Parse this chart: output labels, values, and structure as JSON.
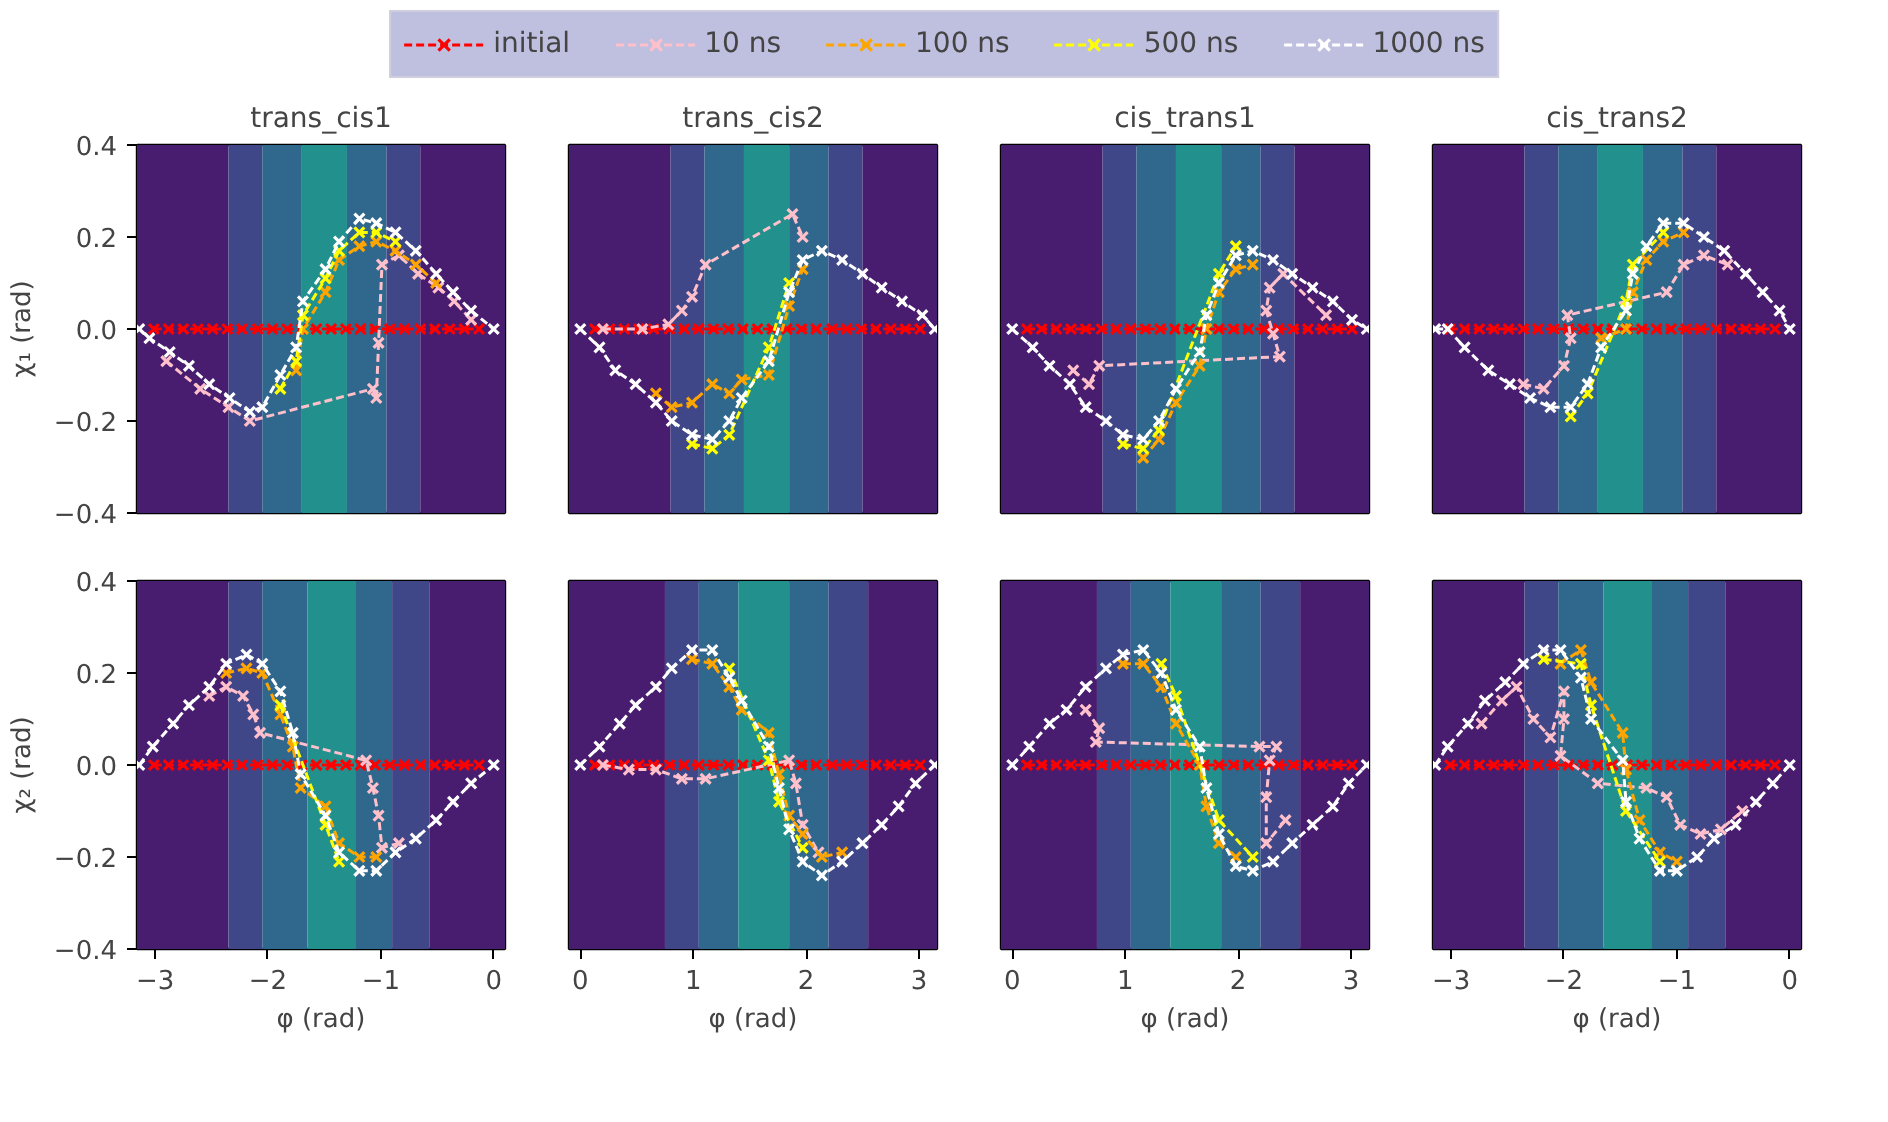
{
  "chart_data": [
    {
      "type": "line",
      "title": "trans_cis1",
      "ylabel": "χ₁ (rad)",
      "legend": "top",
      "line_style": "dashed",
      "marker": "cross",
      "grid": false,
      "tick_labels": "y",
      "xlim": [
        -3.16,
        0.1
      ],
      "ylim": [
        -0.4,
        0.4
      ],
      "yticks": [
        {
          "value": -0.4,
          "label": "−0.4"
        },
        {
          "value": -0.2,
          "label": "−0.2"
        },
        {
          "value": 0,
          "label": "0.0"
        },
        {
          "value": 0.2,
          "label": "0.2"
        },
        {
          "value": 0.4,
          "label": "0.4"
        }
      ],
      "bands": [
        {
          "axis": "x",
          "from": -3.16,
          "to": -2.35,
          "color": "#481c6e"
        },
        {
          "axis": "x",
          "from": -2.35,
          "to": -2.05,
          "color": "#3f4788"
        },
        {
          "axis": "x",
          "from": -2.05,
          "to": -1.7,
          "color": "#30678d"
        },
        {
          "axis": "x",
          "from": -1.7,
          "to": -1.3,
          "color": "#22908c"
        },
        {
          "axis": "x",
          "from": -1.3,
          "to": -0.95,
          "color": "#30678d"
        },
        {
          "axis": "x",
          "from": -0.95,
          "to": -0.65,
          "color": "#3f4788"
        },
        {
          "axis": "x",
          "from": -0.65,
          "to": 0.1,
          "color": "#481c6e"
        }
      ],
      "series": [
        {
          "name": "initial",
          "color": "#ff0000",
          "x": [
            -3.01,
            -2.88,
            -2.75,
            -2.62,
            -2.49,
            -2.36,
            -2.23,
            -2.09,
            -1.96,
            -1.83,
            -1.7,
            -1.57,
            -1.44,
            -1.31,
            -1.18,
            -1.05,
            -0.92,
            -0.79,
            -0.65,
            -0.52,
            -0.39,
            -0.26,
            -0.13
          ],
          "values": [
            0,
            0,
            0,
            0,
            0,
            0,
            0,
            0,
            0,
            0,
            0,
            0,
            0,
            0,
            0,
            0,
            0,
            0,
            0,
            0,
            0,
            0,
            0
          ]
        },
        {
          "name": "10 ns",
          "color": "#ffc0cb",
          "x": [
            -2.9,
            -2.6,
            -2.35,
            -2.16,
            -1.07,
            -1.04,
            -1.02,
            -0.99,
            -0.84,
            -0.67,
            -0.49,
            -0.35,
            -0.2
          ],
          "values": [
            -0.07,
            -0.13,
            -0.17,
            -0.2,
            -0.13,
            -0.15,
            -0.03,
            0.14,
            0.16,
            0.12,
            0.09,
            0.06,
            0.02
          ]
        },
        {
          "name": "100 ns",
          "color": "#ffa500",
          "x": [
            -1.75,
            -1.69,
            -1.49,
            -1.37,
            -1.19,
            -1.04,
            -0.87,
            -0.69,
            -0.51
          ],
          "values": [
            -0.09,
            0.0,
            0.08,
            0.15,
            0.18,
            0.19,
            0.17,
            0.14,
            0.1
          ]
        },
        {
          "name": "500 ns",
          "color": "#ffff00",
          "x": [
            -1.89,
            -1.75,
            -1.69,
            -1.49,
            -1.37,
            -1.19,
            -1.04,
            -0.87
          ],
          "values": [
            -0.13,
            -0.07,
            0.03,
            0.11,
            0.17,
            0.21,
            0.21,
            0.19
          ]
        },
        {
          "name": "1000 ns",
          "color": "#ffffff",
          "x": [
            -3.14,
            -3.05,
            -2.87,
            -2.7,
            -2.52,
            -2.34,
            -2.16,
            -2.05,
            -1.89,
            -1.75,
            -1.69,
            -1.49,
            -1.37,
            -1.19,
            -1.04,
            -0.87,
            -0.69,
            -0.51,
            -0.36,
            -0.2,
            0
          ],
          "values": [
            0,
            -0.02,
            -0.05,
            -0.08,
            -0.12,
            -0.15,
            -0.18,
            -0.17,
            -0.1,
            -0.04,
            0.06,
            0.13,
            0.19,
            0.24,
            0.23,
            0.21,
            0.17,
            0.12,
            0.08,
            0.04,
            0
          ]
        }
      ]
    },
    {
      "type": "line",
      "title": "trans_cis2",
      "line_style": "dashed",
      "marker": "cross",
      "grid": false,
      "tick_labels": false,
      "xlim": [
        -0.1,
        3.16
      ],
      "ylim": [
        -0.4,
        0.4
      ],
      "bands": [
        {
          "axis": "x",
          "from": -0.1,
          "to": 0.8,
          "color": "#481c6e"
        },
        {
          "axis": "x",
          "from": 0.8,
          "to": 1.1,
          "color": "#3f4788"
        },
        {
          "axis": "x",
          "from": 1.1,
          "to": 1.45,
          "color": "#30678d"
        },
        {
          "axis": "x",
          "from": 1.45,
          "to": 1.85,
          "color": "#22908c"
        },
        {
          "axis": "x",
          "from": 1.85,
          "to": 2.2,
          "color": "#30678d"
        },
        {
          "axis": "x",
          "from": 2.2,
          "to": 2.5,
          "color": "#3f4788"
        },
        {
          "axis": "x",
          "from": 2.5,
          "to": 3.16,
          "color": "#481c6e"
        }
      ],
      "series": [
        {
          "color": "#ff0000",
          "x": [
            0.13,
            0.26,
            0.39,
            0.52,
            0.65,
            0.79,
            0.92,
            1.05,
            1.18,
            1.31,
            1.44,
            1.57,
            1.7,
            1.83,
            1.96,
            2.09,
            2.23,
            2.36,
            2.49,
            2.62,
            2.75,
            2.88,
            3.01
          ],
          "values": [
            0,
            0,
            0,
            0,
            0,
            0,
            0,
            0,
            0,
            0,
            0,
            0,
            0,
            0,
            0,
            0,
            0,
            0,
            0,
            0,
            0,
            0,
            0
          ]
        },
        {
          "color": "#ffc0cb",
          "x": [
            0.2,
            0.55,
            0.78,
            0.9,
            0.99,
            1.11,
            1.88,
            1.97
          ],
          "values": [
            0,
            0,
            0.01,
            0.04,
            0.07,
            0.14,
            0.25,
            0.2
          ]
        },
        {
          "color": "#ffa500",
          "x": [
            0.67,
            0.81,
            0.99,
            1.17,
            1.32,
            1.43,
            1.67,
            1.85,
            1.97
          ],
          "values": [
            -0.14,
            -0.17,
            -0.16,
            -0.12,
            -0.14,
            -0.11,
            -0.1,
            0.05,
            0.13
          ]
        },
        {
          "color": "#ffff00",
          "x": [
            0.99,
            1.17,
            1.32,
            1.67,
            1.85
          ],
          "values": [
            -0.25,
            -0.26,
            -0.23,
            -0.04,
            0.1
          ]
        },
        {
          "color": "#ffffff",
          "x": [
            0,
            0.17,
            0.31,
            0.49,
            0.67,
            0.81,
            0.99,
            1.17,
            1.32,
            1.43,
            1.67,
            1.85,
            1.97,
            2.14,
            2.32,
            2.5,
            2.67,
            2.85,
            3.03,
            3.14
          ],
          "values": [
            0,
            -0.04,
            -0.09,
            -0.12,
            -0.16,
            -0.2,
            -0.23,
            -0.24,
            -0.2,
            -0.15,
            -0.07,
            0.08,
            0.15,
            0.17,
            0.15,
            0.12,
            0.09,
            0.06,
            0.03,
            0
          ]
        }
      ]
    },
    {
      "type": "line",
      "title": "cis_trans1",
      "line_style": "dashed",
      "marker": "cross",
      "grid": false,
      "tick_labels": false,
      "xlim": [
        -0.1,
        3.16
      ],
      "ylim": [
        -0.4,
        0.4
      ],
      "bands": [
        {
          "axis": "x",
          "from": -0.1,
          "to": 0.8,
          "color": "#481c6e"
        },
        {
          "axis": "x",
          "from": 0.8,
          "to": 1.1,
          "color": "#3f4788"
        },
        {
          "axis": "x",
          "from": 1.1,
          "to": 1.45,
          "color": "#30678d"
        },
        {
          "axis": "x",
          "from": 1.45,
          "to": 1.85,
          "color": "#22908c"
        },
        {
          "axis": "x",
          "from": 1.85,
          "to": 2.2,
          "color": "#30678d"
        },
        {
          "axis": "x",
          "from": 2.2,
          "to": 2.5,
          "color": "#3f4788"
        },
        {
          "axis": "x",
          "from": 2.5,
          "to": 3.16,
          "color": "#481c6e"
        }
      ],
      "series": [
        {
          "color": "#ff0000",
          "x": [
            0.13,
            0.26,
            0.39,
            0.52,
            0.65,
            0.79,
            0.92,
            1.05,
            1.18,
            1.31,
            1.44,
            1.57,
            1.7,
            1.83,
            1.96,
            2.09,
            2.23,
            2.36,
            2.49,
            2.62,
            2.75,
            2.88,
            3.01
          ],
          "values": [
            0,
            0,
            0,
            0,
            0,
            0,
            0,
            0,
            0,
            0,
            0,
            0,
            0,
            0,
            0,
            0,
            0,
            0,
            0,
            0,
            0,
            0,
            0
          ]
        },
        {
          "color": "#ffc0cb",
          "x": [
            0.54,
            0.68,
            0.77,
            2.37,
            2.31,
            2.25,
            2.28,
            2.4,
            2.78
          ],
          "values": [
            -0.09,
            -0.12,
            -0.08,
            -0.06,
            -0.01,
            0.04,
            0.09,
            0.12,
            0.03
          ]
        },
        {
          "color": "#ffa500",
          "x": [
            1.16,
            1.3,
            1.45,
            1.66,
            1.72,
            1.83,
            1.98,
            2.13
          ],
          "values": [
            -0.28,
            -0.24,
            -0.16,
            -0.08,
            0.0,
            0.08,
            0.13,
            0.14
          ]
        },
        {
          "color": "#ffff00",
          "x": [
            0.98,
            1.16,
            1.3,
            1.83,
            1.98
          ],
          "values": [
            -0.25,
            -0.26,
            -0.22,
            0.12,
            0.18
          ]
        },
        {
          "color": "#ffffff",
          "x": [
            0,
            0.18,
            0.33,
            0.51,
            0.65,
            0.83,
            0.98,
            1.16,
            1.3,
            1.45,
            1.66,
            1.72,
            1.83,
            1.98,
            2.13,
            2.31,
            2.48,
            2.66,
            2.84,
            3.01,
            3.14
          ],
          "values": [
            0,
            -0.04,
            -0.08,
            -0.12,
            -0.17,
            -0.2,
            -0.23,
            -0.24,
            -0.2,
            -0.13,
            -0.05,
            0.03,
            0.1,
            0.16,
            0.17,
            0.15,
            0.12,
            0.09,
            0.06,
            0.02,
            0
          ]
        }
      ]
    },
    {
      "type": "line",
      "title": "cis_trans2",
      "line_style": "dashed",
      "marker": "cross",
      "grid": false,
      "tick_labels": false,
      "xlim": [
        -3.16,
        0.1
      ],
      "ylim": [
        -0.4,
        0.4
      ],
      "bands": [
        {
          "axis": "x",
          "from": -3.16,
          "to": -2.35,
          "color": "#481c6e"
        },
        {
          "axis": "x",
          "from": -2.35,
          "to": -2.05,
          "color": "#3f4788"
        },
        {
          "axis": "x",
          "from": -2.05,
          "to": -1.7,
          "color": "#30678d"
        },
        {
          "axis": "x",
          "from": -1.7,
          "to": -1.3,
          "color": "#22908c"
        },
        {
          "axis": "x",
          "from": -1.3,
          "to": -0.95,
          "color": "#30678d"
        },
        {
          "axis": "x",
          "from": -0.95,
          "to": -0.65,
          "color": "#3f4788"
        },
        {
          "axis": "x",
          "from": -0.65,
          "to": 0.1,
          "color": "#481c6e"
        }
      ],
      "series": [
        {
          "color": "#ff0000",
          "x": [
            -3.01,
            -2.88,
            -2.75,
            -2.62,
            -2.49,
            -2.36,
            -2.23,
            -2.09,
            -1.96,
            -1.83,
            -1.7,
            -1.57,
            -1.44,
            -1.31,
            -1.18,
            -1.05,
            -0.92,
            -0.79,
            -0.65,
            -0.52,
            -0.39,
            -0.26,
            -0.13
          ],
          "values": [
            0,
            0,
            0,
            0,
            0,
            0,
            0,
            0,
            0,
            0,
            0,
            0,
            0,
            0,
            0,
            0,
            0,
            0,
            0,
            0,
            0,
            0,
            0
          ]
        },
        {
          "color": "#ffc0cb",
          "x": [
            -2.36,
            -2.18,
            -2.0,
            -1.94,
            -1.97,
            -1.09,
            -0.94,
            -0.76,
            -0.55
          ],
          "values": [
            -0.12,
            -0.13,
            -0.08,
            -0.02,
            0.03,
            0.08,
            0.14,
            0.16,
            0.14
          ]
        },
        {
          "color": "#ffa500",
          "x": [
            -1.67,
            -1.45,
            -1.39,
            -1.27,
            -1.12,
            -0.94
          ],
          "values": [
            -0.02,
            0.0,
            0.08,
            0.15,
            0.19,
            0.21
          ]
        },
        {
          "color": "#ffff00",
          "x": [
            -1.94,
            -1.79,
            -1.45,
            -1.39,
            -1.12
          ],
          "values": [
            -0.19,
            -0.14,
            0.06,
            0.14,
            0.21
          ]
        },
        {
          "color": "#ffffff",
          "x": [
            -3.14,
            -3.03,
            -2.88,
            -2.67,
            -2.48,
            -2.3,
            -2.12,
            -1.94,
            -1.79,
            -1.67,
            -1.45,
            -1.39,
            -1.27,
            -1.12,
            -0.94,
            -0.76,
            -0.58,
            -0.39,
            -0.24,
            -0.09,
            0
          ],
          "values": [
            0,
            0,
            -0.04,
            -0.09,
            -0.12,
            -0.15,
            -0.17,
            -0.17,
            -0.12,
            -0.04,
            0.04,
            0.12,
            0.18,
            0.23,
            0.23,
            0.2,
            0.17,
            0.12,
            0.08,
            0.04,
            0
          ]
        }
      ]
    },
    {
      "type": "line",
      "xlabel": "φ (rad)",
      "ylabel": "χ₂ (rad)",
      "line_style": "dashed",
      "marker": "cross",
      "grid": false,
      "xlim": [
        -3.16,
        0.1
      ],
      "ylim": [
        -0.4,
        0.4
      ],
      "xticks": [
        {
          "value": -3,
          "label": "−3"
        },
        {
          "value": -2,
          "label": "−2"
        },
        {
          "value": -1,
          "label": "−1"
        },
        0
      ],
      "yticks": [
        {
          "value": -0.4,
          "label": "−0.4"
        },
        {
          "value": -0.2,
          "label": "−0.2"
        },
        {
          "value": 0,
          "label": "0.0"
        },
        {
          "value": 0.2,
          "label": "0.2"
        },
        {
          "value": 0.4,
          "label": "0.4"
        }
      ],
      "bands": [
        {
          "axis": "x",
          "from": -3.16,
          "to": -2.35,
          "color": "#481c6e"
        },
        {
          "axis": "x",
          "from": -2.35,
          "to": -2.05,
          "color": "#3f4788"
        },
        {
          "axis": "x",
          "from": -2.05,
          "to": -1.65,
          "color": "#30678d"
        },
        {
          "axis": "x",
          "from": -1.65,
          "to": -1.22,
          "color": "#22908c"
        },
        {
          "axis": "x",
          "from": -1.22,
          "to": -0.9,
          "color": "#30678d"
        },
        {
          "axis": "x",
          "from": -0.9,
          "to": -0.57,
          "color": "#3f4788"
        },
        {
          "axis": "x",
          "from": -0.57,
          "to": 0.1,
          "color": "#481c6e"
        }
      ],
      "series": [
        {
          "color": "#ff0000",
          "x": [
            -3.01,
            -2.88,
            -2.75,
            -2.62,
            -2.49,
            -2.36,
            -2.23,
            -2.09,
            -1.96,
            -1.83,
            -1.7,
            -1.57,
            -1.44,
            -1.31,
            -1.18,
            -1.05,
            -0.92,
            -0.79,
            -0.65,
            -0.52,
            -0.39,
            -0.26,
            -0.13
          ],
          "values": [
            0,
            0,
            0,
            0,
            0,
            0,
            0,
            0,
            0,
            0,
            0,
            0,
            0,
            0,
            0,
            0,
            0,
            0,
            0,
            0,
            0,
            0,
            0
          ]
        },
        {
          "color": "#ffc0cb",
          "x": [
            -2.52,
            -2.37,
            -2.22,
            -2.13,
            -2.07,
            -1.13,
            -1.07,
            -1.02,
            -0.99,
            -0.84
          ],
          "values": [
            0.15,
            0.17,
            0.15,
            0.11,
            0.07,
            0.01,
            -0.05,
            -0.11,
            -0.18,
            -0.17
          ]
        },
        {
          "color": "#ffa500",
          "x": [
            -2.37,
            -2.19,
            -2.05,
            -1.89,
            -1.78,
            -1.71,
            -1.49,
            -1.37,
            -1.19,
            -1.04
          ],
          "values": [
            0.2,
            0.21,
            0.2,
            0.11,
            0.04,
            -0.05,
            -0.09,
            -0.17,
            -0.2,
            -0.2
          ]
        },
        {
          "color": "#ffff00",
          "x": [
            -1.89,
            -1.49,
            -1.37
          ],
          "values": [
            0.13,
            -0.13,
            -0.21
          ]
        },
        {
          "color": "#ffffff",
          "x": [
            -3.14,
            -3.02,
            -2.84,
            -2.7,
            -2.52,
            -2.37,
            -2.19,
            -2.05,
            -1.89,
            -1.78,
            -1.71,
            -1.49,
            -1.37,
            -1.19,
            -1.04,
            -0.87,
            -0.69,
            -0.51,
            -0.36,
            -0.2,
            0
          ],
          "values": [
            0,
            0.04,
            0.09,
            0.13,
            0.17,
            0.22,
            0.24,
            0.22,
            0.16,
            0.07,
            -0.02,
            -0.11,
            -0.19,
            -0.23,
            -0.23,
            -0.19,
            -0.16,
            -0.12,
            -0.08,
            -0.04,
            0
          ]
        }
      ]
    },
    {
      "type": "line",
      "xlabel": "φ (rad)",
      "line_style": "dashed",
      "marker": "cross",
      "grid": false,
      "tick_labels": "x",
      "xlim": [
        -0.1,
        3.16
      ],
      "ylim": [
        -0.4,
        0.4
      ],
      "xticks": [
        0,
        1,
        2,
        3
      ],
      "bands": [
        {
          "axis": "x",
          "from": -0.1,
          "to": 0.75,
          "color": "#481c6e"
        },
        {
          "axis": "x",
          "from": 0.75,
          "to": 1.05,
          "color": "#3f4788"
        },
        {
          "axis": "x",
          "from": 1.05,
          "to": 1.4,
          "color": "#30678d"
        },
        {
          "axis": "x",
          "from": 1.4,
          "to": 1.85,
          "color": "#22908c"
        },
        {
          "axis": "x",
          "from": 1.85,
          "to": 2.2,
          "color": "#30678d"
        },
        {
          "axis": "x",
          "from": 2.2,
          "to": 2.55,
          "color": "#3f4788"
        },
        {
          "axis": "x",
          "from": 2.55,
          "to": 3.16,
          "color": "#481c6e"
        }
      ],
      "series": [
        {
          "color": "#ff0000",
          "x": [
            0.13,
            0.26,
            0.39,
            0.52,
            0.65,
            0.79,
            0.92,
            1.05,
            1.18,
            1.31,
            1.44,
            1.57,
            1.7,
            1.83,
            1.96,
            2.09,
            2.23,
            2.36,
            2.49,
            2.62,
            2.75,
            2.88,
            3.01
          ],
          "values": [
            0,
            0,
            0,
            0,
            0,
            0,
            0,
            0,
            0,
            0,
            0,
            0,
            0,
            0,
            0,
            0,
            0,
            0,
            0,
            0,
            0,
            0,
            0
          ]
        },
        {
          "color": "#ffc0cb",
          "x": [
            0.2,
            0.43,
            0.67,
            0.9,
            1.11,
            1.85,
            1.91,
            1.97,
            2.11
          ],
          "values": [
            0,
            -0.01,
            -0.01,
            -0.03,
            -0.03,
            0.01,
            -0.04,
            -0.13,
            -0.19
          ]
        },
        {
          "color": "#ffa500",
          "x": [
            0.99,
            1.17,
            1.32,
            1.43,
            1.67,
            1.76,
            1.85,
            1.97,
            2.14,
            2.32
          ],
          "values": [
            0.23,
            0.22,
            0.17,
            0.12,
            0.07,
            -0.02,
            -0.11,
            -0.15,
            -0.2,
            -0.19
          ]
        },
        {
          "color": "#ffff00",
          "x": [
            1.32,
            1.67,
            1.76,
            1.97
          ],
          "values": [
            0.21,
            0.01,
            -0.08,
            -0.18
          ]
        },
        {
          "color": "#ffffff",
          "x": [
            0,
            0.17,
            0.35,
            0.49,
            0.67,
            0.81,
            0.99,
            1.17,
            1.32,
            1.43,
            1.67,
            1.76,
            1.85,
            1.97,
            2.14,
            2.32,
            2.5,
            2.67,
            2.82,
            2.97,
            3.14
          ],
          "values": [
            0,
            0.04,
            0.09,
            0.13,
            0.17,
            0.21,
            0.25,
            0.25,
            0.19,
            0.14,
            0.04,
            -0.05,
            -0.14,
            -0.21,
            -0.24,
            -0.21,
            -0.17,
            -0.13,
            -0.09,
            -0.04,
            0
          ]
        }
      ]
    },
    {
      "type": "line",
      "xlabel": "φ (rad)",
      "line_style": "dashed",
      "marker": "cross",
      "grid": false,
      "tick_labels": "x",
      "xlim": [
        -0.1,
        3.16
      ],
      "ylim": [
        -0.4,
        0.4
      ],
      "xticks": [
        0,
        1,
        2,
        3
      ],
      "bands": [
        {
          "axis": "x",
          "from": -0.1,
          "to": 0.75,
          "color": "#481c6e"
        },
        {
          "axis": "x",
          "from": 0.75,
          "to": 1.05,
          "color": "#3f4788"
        },
        {
          "axis": "x",
          "from": 1.05,
          "to": 1.4,
          "color": "#30678d"
        },
        {
          "axis": "x",
          "from": 1.4,
          "to": 1.85,
          "color": "#22908c"
        },
        {
          "axis": "x",
          "from": 1.85,
          "to": 2.2,
          "color": "#30678d"
        },
        {
          "axis": "x",
          "from": 2.2,
          "to": 2.55,
          "color": "#3f4788"
        },
        {
          "axis": "x",
          "from": 2.55,
          "to": 3.16,
          "color": "#481c6e"
        }
      ],
      "series": [
        {
          "color": "#ff0000",
          "x": [
            0.13,
            0.26,
            0.39,
            0.52,
            0.65,
            0.79,
            0.92,
            1.05,
            1.18,
            1.31,
            1.44,
            1.57,
            1.7,
            1.83,
            1.96,
            2.09,
            2.23,
            2.36,
            2.49,
            2.62,
            2.75,
            2.88,
            3.01
          ],
          "values": [
            0,
            0,
            0,
            0,
            0,
            0,
            0,
            0,
            0,
            0,
            0,
            0,
            0,
            0,
            0,
            0,
            0,
            0,
            0,
            0,
            0,
            0,
            0
          ]
        },
        {
          "color": "#ffc0cb",
          "x": [
            0.65,
            0.77,
            0.74,
            2.19,
            2.34,
            2.28,
            2.25,
            2.25,
            2.42
          ],
          "values": [
            0.12,
            0.08,
            0.05,
            0.04,
            0.04,
            0.01,
            -0.07,
            -0.17,
            -0.12
          ]
        },
        {
          "color": "#ffa500",
          "x": [
            0.98,
            1.16,
            1.32,
            1.45,
            1.66,
            1.72,
            1.83,
            1.98
          ],
          "values": [
            0.22,
            0.22,
            0.17,
            0.09,
            0.0,
            -0.09,
            -0.17,
            -0.2
          ]
        },
        {
          "color": "#ffff00",
          "x": [
            1.32,
            1.45,
            1.83,
            2.13
          ],
          "values": [
            0.22,
            0.15,
            -0.12,
            -0.2
          ]
        },
        {
          "color": "#ffffff",
          "x": [
            0,
            0.15,
            0.33,
            0.48,
            0.65,
            0.83,
            0.98,
            1.16,
            1.32,
            1.45,
            1.66,
            1.72,
            1.83,
            1.98,
            2.13,
            2.31,
            2.48,
            2.66,
            2.84,
            2.98,
            3.14
          ],
          "values": [
            0,
            0.04,
            0.09,
            0.12,
            0.17,
            0.21,
            0.24,
            0.25,
            0.2,
            0.12,
            0.04,
            -0.05,
            -0.15,
            -0.22,
            -0.23,
            -0.21,
            -0.17,
            -0.13,
            -0.09,
            -0.04,
            0
          ]
        }
      ]
    },
    {
      "type": "line",
      "xlabel": "φ (rad)",
      "line_style": "dashed",
      "marker": "cross",
      "grid": false,
      "tick_labels": "x",
      "xlim": [
        -3.16,
        0.1
      ],
      "ylim": [
        -0.4,
        0.4
      ],
      "xticks": [
        {
          "value": -3,
          "label": "−3"
        },
        {
          "value": -2,
          "label": "−2"
        },
        {
          "value": -1,
          "label": "−1"
        },
        0
      ],
      "bands": [
        {
          "axis": "x",
          "from": -3.16,
          "to": -2.35,
          "color": "#481c6e"
        },
        {
          "axis": "x",
          "from": -2.35,
          "to": -2.05,
          "color": "#3f4788"
        },
        {
          "axis": "x",
          "from": -2.05,
          "to": -1.65,
          "color": "#30678d"
        },
        {
          "axis": "x",
          "from": -1.65,
          "to": -1.22,
          "color": "#22908c"
        },
        {
          "axis": "x",
          "from": -1.22,
          "to": -0.9,
          "color": "#30678d"
        },
        {
          "axis": "x",
          "from": -0.9,
          "to": -0.57,
          "color": "#3f4788"
        },
        {
          "axis": "x",
          "from": -0.57,
          "to": 0.1,
          "color": "#481c6e"
        }
      ],
      "series": [
        {
          "color": "#ff0000",
          "x": [
            -3.01,
            -2.88,
            -2.75,
            -2.62,
            -2.49,
            -2.36,
            -2.23,
            -2.09,
            -1.96,
            -1.83,
            -1.7,
            -1.57,
            -1.44,
            -1.31,
            -1.18,
            -1.05,
            -0.92,
            -0.79,
            -0.65,
            -0.52,
            -0.39,
            -0.26,
            -0.13
          ],
          "values": [
            0,
            0,
            0,
            0,
            0,
            0,
            0,
            0,
            0,
            0,
            0,
            0,
            0,
            0,
            0,
            0,
            0,
            0,
            0,
            0,
            0,
            0,
            0
          ]
        },
        {
          "color": "#ffc0cb",
          "x": [
            -2.73,
            -2.55,
            -2.42,
            -2.27,
            -2.12,
            -2.0,
            -2.0,
            -2.03,
            -1.7,
            -1.27,
            -1.09,
            -0.97,
            -0.79,
            -0.61,
            -0.42
          ],
          "values": [
            0.09,
            0.14,
            0.17,
            0.1,
            0.06,
            0.16,
            0.1,
            0.02,
            -0.04,
            -0.05,
            -0.07,
            -0.13,
            -0.15,
            -0.14,
            -0.1
          ]
        },
        {
          "color": "#ffa500",
          "x": [
            -2.03,
            -1.85,
            -1.76,
            -1.48,
            -1.45,
            -1.33,
            -1.15,
            -1.0
          ],
          "values": [
            0.22,
            0.25,
            0.18,
            0.07,
            -0.01,
            -0.12,
            -0.19,
            -0.21
          ]
        },
        {
          "color": "#ffff00",
          "x": [
            -2.18,
            -1.85,
            -1.76,
            -1.45,
            -1.15
          ],
          "values": [
            0.23,
            0.22,
            0.13,
            -0.1,
            -0.21
          ]
        },
        {
          "color": "#ffffff",
          "x": [
            -3.14,
            -3.03,
            -2.85,
            -2.7,
            -2.52,
            -2.36,
            -2.18,
            -2.03,
            -1.85,
            -1.76,
            -1.48,
            -1.45,
            -1.33,
            -1.15,
            -1.0,
            -0.82,
            -0.67,
            -0.48,
            -0.3,
            -0.15,
            0
          ],
          "values": [
            0,
            0.04,
            0.09,
            0.14,
            0.18,
            0.22,
            0.25,
            0.25,
            0.19,
            0.1,
            0.01,
            -0.08,
            -0.16,
            -0.23,
            -0.23,
            -0.2,
            -0.16,
            -0.13,
            -0.08,
            -0.04,
            0
          ]
        }
      ]
    }
  ]
}
